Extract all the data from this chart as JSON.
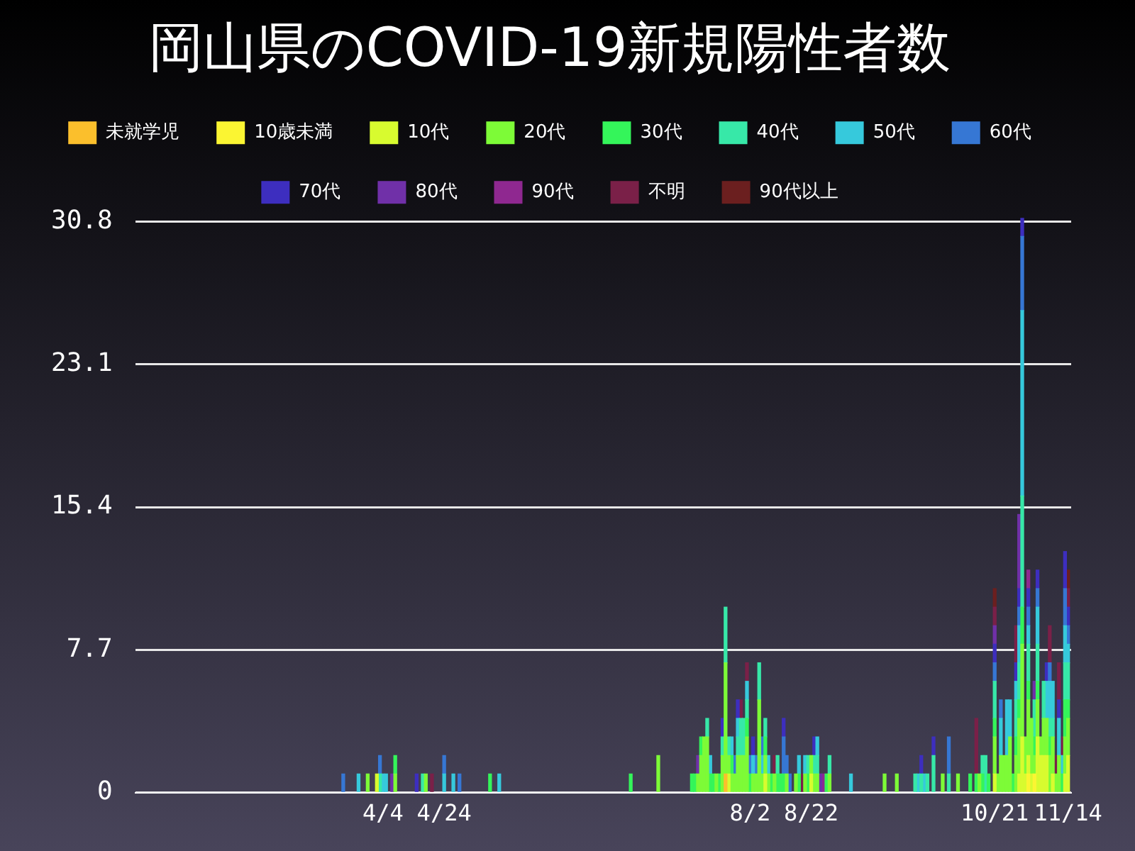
{
  "chart_data": {
    "type": "bar",
    "title": "岡山県のCOVID-19新規陽性者数",
    "stacked": true,
    "legend": "top",
    "grid": "y",
    "xlim": [
      "--01-14",
      "--11-15"
    ],
    "xticks": [
      {
        "value": "--04-04",
        "label": "4/4"
      },
      {
        "value": "--04-24",
        "label": "4/24"
      },
      {
        "value": "--08-02",
        "label": "8/2"
      },
      {
        "value": "--08-22",
        "label": "8/22"
      },
      {
        "value": "--10-21",
        "label": "10/21"
      },
      {
        "value": "--11-14",
        "label": "11/14"
      }
    ],
    "ylim": [
      0,
      31
    ],
    "yticks": [
      0,
      7.7,
      15.4,
      23.1,
      30.8
    ],
    "x": [
      "--03-22",
      "--03-27",
      "--03-30",
      "--04-02",
      "--04-03",
      "--04-04",
      "--04-05",
      "--04-07",
      "--04-08",
      "--04-15",
      "--04-17",
      "--04-18",
      "--04-20",
      "--04-24",
      "--04-27",
      "--04-29",
      "--05-09",
      "--05-12",
      "--06-24",
      "--07-03",
      "--07-14",
      "--07-15",
      "--07-16",
      "--07-17",
      "--07-18",
      "--07-19",
      "--07-20",
      "--07-21",
      "--07-22",
      "--07-23",
      "--07-24",
      "--07-25",
      "--07-26",
      "--07-27",
      "--07-28",
      "--07-29",
      "--07-30",
      "--07-31",
      "--08-01",
      "--08-02",
      "--08-03",
      "--08-04",
      "--08-05",
      "--08-06",
      "--08-07",
      "--08-08",
      "--08-09",
      "--08-10",
      "--08-11",
      "--08-12",
      "--08-13",
      "--08-14",
      "--08-15",
      "--08-17",
      "--08-18",
      "--08-19",
      "--08-20",
      "--08-21",
      "--08-22",
      "--08-23",
      "--08-24",
      "--08-25",
      "--08-26",
      "--08-27",
      "--08-28",
      "--09-04",
      "--09-15",
      "--09-19",
      "--09-25",
      "--09-26",
      "--09-27",
      "--09-28",
      "--09-29",
      "--10-01",
      "--10-04",
      "--10-06",
      "--10-09",
      "--10-13",
      "--10-15",
      "--10-16",
      "--10-17",
      "--10-18",
      "--10-19",
      "--10-21",
      "--10-22",
      "--10-23",
      "--10-24",
      "--10-25",
      "--10-26",
      "--10-27",
      "--10-28",
      "--10-29",
      "--10-30",
      "--10-31",
      "--11-01",
      "--11-02",
      "--11-03",
      "--11-04",
      "--11-05",
      "--11-06",
      "--11-07",
      "--11-08",
      "--11-09",
      "--11-10",
      "--11-11",
      "--11-12",
      "--11-13",
      "--11-14"
    ],
    "series": [
      {
        "name": "未就学児",
        "color": "#fbbf2c",
        "values": [
          null,
          null,
          null,
          null,
          null,
          null,
          null,
          null,
          null,
          null,
          null,
          null,
          null,
          null,
          null,
          null,
          null,
          null,
          null,
          null,
          null,
          null,
          null,
          null,
          null,
          null,
          null,
          null,
          null,
          null,
          null,
          1,
          null,
          null,
          null,
          null,
          null,
          null,
          null,
          null,
          null,
          null,
          null,
          null,
          null,
          null,
          null,
          null,
          null,
          null,
          null,
          null,
          null,
          null,
          null,
          null,
          null,
          null,
          null,
          null,
          null,
          null,
          null,
          null,
          null,
          null,
          null,
          null,
          null,
          null,
          null,
          null,
          null,
          null,
          null,
          null,
          null,
          null,
          null,
          null,
          null,
          null,
          null,
          null,
          null,
          null,
          null,
          null,
          null,
          null,
          null,
          null,
          null,
          null,
          null,
          null,
          null,
          null,
          null,
          null,
          null,
          null,
          null,
          null,
          null,
          null,
          null,
          null
        ]
      },
      {
        "name": "10歳未満",
        "color": "#fbf532",
        "values": [
          null,
          null,
          null,
          null,
          null,
          null,
          null,
          null,
          null,
          null,
          null,
          null,
          null,
          null,
          null,
          null,
          null,
          null,
          null,
          null,
          null,
          null,
          null,
          null,
          null,
          null,
          null,
          null,
          null,
          null,
          null,
          null,
          null,
          null,
          null,
          null,
          null,
          null,
          null,
          null,
          null,
          null,
          null,
          null,
          null,
          null,
          null,
          null,
          null,
          null,
          null,
          null,
          null,
          null,
          null,
          null,
          null,
          null,
          null,
          null,
          null,
          null,
          null,
          null,
          null,
          null,
          null,
          null,
          null,
          null,
          null,
          null,
          null,
          null,
          null,
          null,
          null,
          null,
          null,
          null,
          null,
          null,
          null,
          null,
          null,
          null,
          null,
          null,
          null,
          null,
          null,
          null,
          null,
          null,
          1,
          null,
          1,
          null,
          null,
          null,
          null,
          null,
          null,
          null,
          null,
          null,
          null,
          null
        ]
      },
      {
        "name": "10代",
        "color": "#d8fb2f",
        "values": [
          null,
          null,
          null,
          1,
          null,
          null,
          null,
          null,
          null,
          null,
          null,
          null,
          null,
          null,
          null,
          null,
          null,
          null,
          null,
          null,
          null,
          null,
          null,
          null,
          null,
          null,
          null,
          null,
          null,
          null,
          null,
          null,
          1,
          null,
          null,
          null,
          null,
          null,
          null,
          null,
          null,
          null,
          null,
          null,
          1,
          null,
          null,
          null,
          null,
          null,
          null,
          null,
          null,
          null,
          null,
          null,
          null,
          null,
          1,
          null,
          null,
          null,
          null,
          null,
          null,
          null,
          null,
          null,
          null,
          null,
          null,
          null,
          null,
          null,
          null,
          null,
          null,
          null,
          null,
          null,
          null,
          null,
          null,
          1,
          null,
          null,
          null,
          null,
          null,
          null,
          null,
          1,
          3,
          1,
          1,
          1,
          null,
          3,
          2,
          2,
          2,
          null,
          1,
          null,
          null,
          null,
          1,
          2
        ]
      },
      {
        "name": "20代",
        "color": "#7dfb37",
        "values": [
          null,
          null,
          1,
          null,
          null,
          null,
          null,
          null,
          1,
          null,
          null,
          1,
          null,
          null,
          null,
          null,
          null,
          null,
          null,
          2,
          null,
          null,
          1,
          2,
          3,
          3,
          null,
          null,
          1,
          null,
          2,
          6,
          1,
          1,
          1,
          2,
          2,
          2,
          3,
          null,
          1,
          1,
          5,
          1,
          1,
          1,
          null,
          1,
          null,
          null,
          null,
          1,
          null,
          1,
          null,
          null,
          1,
          null,
          1,
          1,
          1,
          null,
          null,
          null,
          1,
          null,
          1,
          1,
          null,
          null,
          null,
          null,
          null,
          null,
          1,
          null,
          1,
          null,
          null,
          1,
          null,
          null,
          null,
          2,
          1,
          2,
          2,
          2,
          3,
          null,
          2,
          3,
          5,
          2,
          3,
          3,
          1,
          2,
          1,
          2,
          2,
          2,
          2,
          1,
          2,
          null,
          2,
          2
        ]
      },
      {
        "name": "30代",
        "color": "#34f55a",
        "values": [
          null,
          null,
          null,
          null,
          null,
          null,
          null,
          null,
          1,
          null,
          null,
          null,
          null,
          null,
          null,
          null,
          1,
          null,
          1,
          null,
          1,
          1,
          null,
          1,
          null,
          null,
          1,
          1,
          null,
          1,
          null,
          null,
          null,
          1,
          null,
          null,
          null,
          null,
          1,
          1,
          null,
          null,
          null,
          null,
          1,
          null,
          1,
          null,
          1,
          1,
          1,
          null,
          null,
          null,
          1,
          null,
          null,
          1,
          null,
          null,
          null,
          null,
          null,
          1,
          null,
          null,
          null,
          null,
          null,
          null,
          null,
          null,
          null,
          null,
          null,
          null,
          null,
          1,
          1,
          null,
          1,
          null,
          1,
          1,
          null,
          null,
          null,
          null,
          null,
          1,
          1,
          1,
          2,
          null,
          1,
          null,
          1,
          1,
          null,
          null,
          null,
          1,
          null,
          null,
          null,
          1,
          2,
          1
        ]
      },
      {
        "name": "40代",
        "color": "#37e8a8",
        "values": [
          null,
          null,
          null,
          null,
          1,
          null,
          null,
          null,
          null,
          null,
          1,
          null,
          null,
          null,
          null,
          null,
          null,
          null,
          null,
          null,
          null,
          null,
          null,
          null,
          null,
          1,
          null,
          null,
          null,
          null,
          1,
          3,
          1,
          null,
          null,
          1,
          2,
          2,
          1,
          null,
          null,
          null,
          2,
          null,
          1,
          null,
          null,
          null,
          1,
          null,
          null,
          null,
          null,
          null,
          null,
          null,
          null,
          1,
          null,
          1,
          1,
          null,
          null,
          null,
          1,
          null,
          null,
          null,
          1,
          null,
          1,
          null,
          1,
          2,
          null,
          1,
          null,
          null,
          null,
          null,
          1,
          2,
          null,
          2,
          null,
          null,
          null,
          null,
          null,
          null,
          2,
          2,
          6,
          null,
          2,
          null,
          2,
          2,
          null,
          2,
          null,
          1,
          1,
          null,
          null,
          null,
          2,
          2
        ]
      },
      {
        "name": "50代",
        "color": "#36c9dc",
        "values": [
          null,
          1,
          null,
          null,
          null,
          1,
          1,
          null,
          null,
          null,
          null,
          null,
          null,
          1,
          1,
          null,
          null,
          1,
          null,
          null,
          null,
          null,
          null,
          null,
          null,
          null,
          1,
          null,
          null,
          null,
          null,
          null,
          null,
          1,
          null,
          1,
          null,
          null,
          1,
          null,
          1,
          null,
          null,
          1,
          null,
          1,
          null,
          null,
          null,
          null,
          null,
          null,
          null,
          null,
          1,
          null,
          1,
          null,
          null,
          null,
          1,
          null,
          null,
          null,
          null,
          1,
          null,
          null,
          null,
          1,
          null,
          1,
          null,
          null,
          null,
          null,
          null,
          null,
          null,
          null,
          null,
          null,
          null,
          null,
          null,
          2,
          null,
          3,
          2,
          null,
          1,
          2,
          10,
          null,
          1,
          null,
          null,
          2,
          null,
          null,
          2,
          2,
          2,
          null,
          2,
          1,
          2,
          1
        ]
      },
      {
        "name": "60代",
        "color": "#3677d4",
        "values": [
          1,
          null,
          null,
          null,
          1,
          null,
          null,
          null,
          null,
          null,
          null,
          null,
          null,
          1,
          null,
          1,
          null,
          null,
          null,
          null,
          null,
          null,
          null,
          null,
          null,
          null,
          null,
          null,
          null,
          null,
          null,
          null,
          null,
          null,
          1,
          null,
          null,
          null,
          null,
          1,
          null,
          1,
          null,
          1,
          null,
          null,
          null,
          null,
          null,
          null,
          2,
          1,
          1,
          null,
          null,
          null,
          null,
          null,
          null,
          null,
          null,
          null,
          null,
          null,
          null,
          null,
          null,
          null,
          null,
          null,
          null,
          null,
          null,
          null,
          null,
          2,
          null,
          null,
          null,
          null,
          null,
          null,
          null,
          1,
          null,
          1,
          null,
          null,
          null,
          null,
          null,
          1,
          4,
          null,
          1,
          null,
          null,
          1,
          null,
          null,
          null,
          1,
          null,
          null,
          null,
          null,
          2,
          1
        ]
      },
      {
        "name": "70代",
        "color": "#3d2ebf",
        "values": [
          null,
          null,
          null,
          null,
          null,
          null,
          null,
          null,
          null,
          1,
          null,
          null,
          null,
          null,
          null,
          null,
          null,
          null,
          null,
          null,
          null,
          null,
          null,
          null,
          null,
          null,
          null,
          null,
          null,
          null,
          1,
          null,
          null,
          null,
          null,
          1,
          null,
          null,
          null,
          null,
          1,
          null,
          null,
          null,
          null,
          null,
          null,
          null,
          null,
          null,
          1,
          null,
          null,
          null,
          null,
          null,
          null,
          null,
          null,
          1,
          null,
          null,
          null,
          null,
          null,
          null,
          null,
          null,
          null,
          null,
          1,
          null,
          null,
          1,
          null,
          null,
          null,
          null,
          null,
          null,
          null,
          null,
          null,
          1,
          null,
          null,
          null,
          null,
          null,
          null,
          1,
          1,
          1,
          null,
          1,
          null,
          null,
          1,
          null,
          null,
          1,
          null,
          null,
          null,
          1,
          null,
          2,
          1
        ]
      },
      {
        "name": "80代",
        "color": "#7030a8",
        "values": [
          null,
          null,
          null,
          null,
          null,
          null,
          null,
          1,
          null,
          null,
          null,
          null,
          null,
          null,
          null,
          null,
          null,
          null,
          null,
          null,
          null,
          null,
          1,
          null,
          null,
          null,
          null,
          null,
          null,
          null,
          null,
          null,
          null,
          null,
          null,
          null,
          null,
          null,
          null,
          null,
          null,
          null,
          null,
          null,
          null,
          null,
          null,
          null,
          null,
          null,
          null,
          null,
          null,
          null,
          null,
          null,
          null,
          null,
          null,
          null,
          null,
          1,
          null,
          null,
          null,
          null,
          null,
          null,
          null,
          null,
          null,
          null,
          null,
          null,
          null,
          null,
          null,
          null,
          null,
          null,
          null,
          null,
          null,
          1,
          null,
          null,
          null,
          null,
          null,
          null,
          null,
          4,
          null,
          null,
          null,
          null,
          1,
          null,
          null,
          null,
          null,
          null,
          null,
          null,
          null,
          null,
          null,
          null
        ]
      },
      {
        "name": "90代",
        "color": "#8f2890",
        "values": [
          null,
          null,
          null,
          null,
          null,
          null,
          null,
          null,
          null,
          null,
          null,
          null,
          null,
          null,
          null,
          null,
          null,
          null,
          null,
          null,
          null,
          null,
          null,
          null,
          null,
          null,
          null,
          null,
          null,
          null,
          null,
          null,
          null,
          null,
          null,
          null,
          null,
          null,
          null,
          null,
          null,
          null,
          null,
          null,
          null,
          null,
          null,
          null,
          null,
          null,
          null,
          null,
          null,
          null,
          null,
          null,
          null,
          null,
          null,
          null,
          null,
          null,
          1,
          null,
          null,
          null,
          null,
          null,
          null,
          null,
          null,
          null,
          null,
          null,
          null,
          null,
          null,
          null,
          null,
          null,
          null,
          null,
          null,
          null,
          null,
          null,
          null,
          null,
          null,
          null,
          null,
          null,
          null,
          null,
          1,
          null,
          null,
          null,
          null,
          null,
          null,
          null,
          null,
          null,
          null,
          null,
          null,
          null
        ]
      },
      {
        "name": "不明",
        "color": "#7a2048",
        "values": [
          null,
          null,
          null,
          null,
          null,
          null,
          null,
          null,
          null,
          null,
          null,
          null,
          1,
          null,
          null,
          null,
          null,
          null,
          null,
          null,
          null,
          null,
          null,
          null,
          null,
          null,
          null,
          null,
          null,
          null,
          null,
          null,
          null,
          null,
          null,
          null,
          1,
          null,
          1,
          null,
          null,
          null,
          null,
          null,
          null,
          null,
          null,
          1,
          null,
          null,
          null,
          null,
          null,
          null,
          null,
          1,
          null,
          null,
          null,
          null,
          null,
          null,
          null,
          null,
          null,
          null,
          null,
          null,
          null,
          null,
          null,
          null,
          null,
          null,
          null,
          null,
          null,
          null,
          3,
          null,
          null,
          null,
          null,
          1,
          null,
          null,
          null,
          null,
          null,
          null,
          2,
          null,
          null,
          null,
          null,
          null,
          null,
          null,
          null,
          null,
          null,
          2,
          null,
          1,
          2,
          1,
          null,
          1
        ]
      },
      {
        "name": "90代以上",
        "color": "#6b1f1f",
        "values": [
          null,
          null,
          null,
          null,
          null,
          null,
          null,
          null,
          null,
          null,
          null,
          null,
          null,
          null,
          null,
          null,
          null,
          null,
          null,
          null,
          null,
          null,
          null,
          null,
          null,
          null,
          null,
          null,
          null,
          null,
          null,
          null,
          null,
          null,
          null,
          null,
          null,
          null,
          null,
          null,
          null,
          null,
          null,
          null,
          null,
          null,
          null,
          null,
          null,
          null,
          null,
          null,
          null,
          null,
          null,
          null,
          null,
          null,
          null,
          null,
          null,
          null,
          null,
          null,
          null,
          null,
          null,
          null,
          null,
          null,
          null,
          null,
          null,
          null,
          null,
          null,
          null,
          null,
          null,
          null,
          null,
          null,
          null,
          1,
          null,
          null,
          null,
          null,
          null,
          null,
          null,
          null,
          null,
          null,
          null,
          null,
          null,
          null,
          null,
          null,
          null,
          null,
          null,
          null,
          null,
          null,
          null,
          1
        ]
      }
    ]
  }
}
